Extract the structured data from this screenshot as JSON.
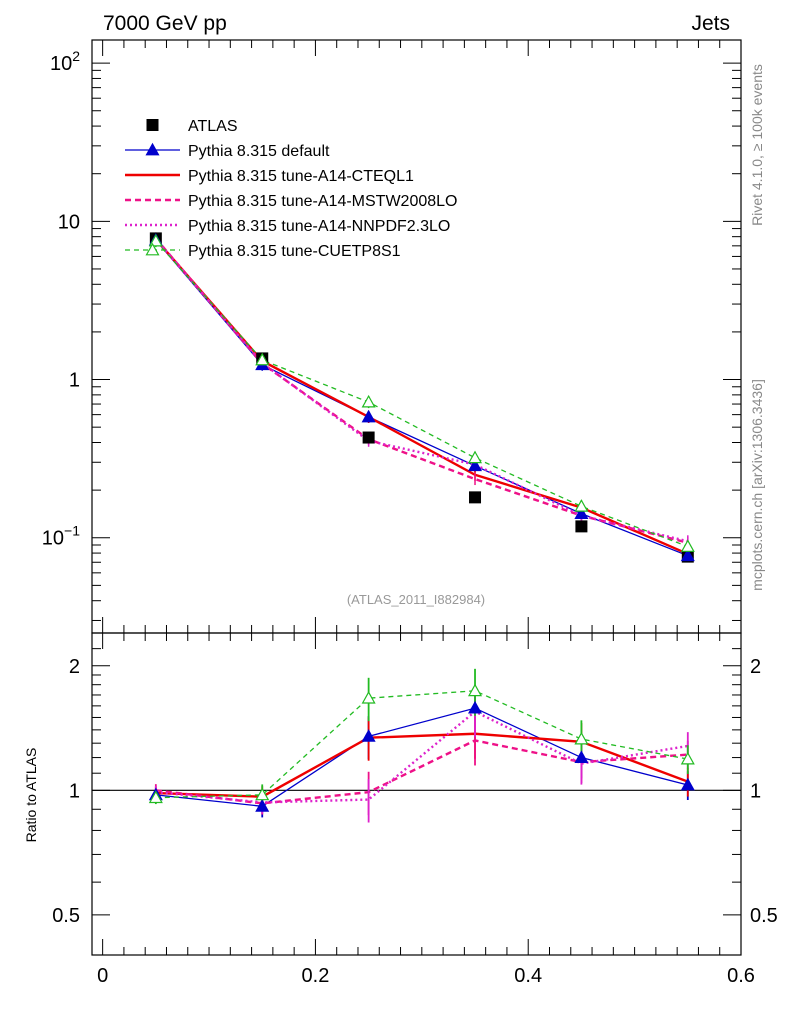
{
  "header": {
    "left": "7000 GeV pp",
    "right": "Jets"
  },
  "side": {
    "rivet": "Rivet 4.1.0, ≥ 100k events",
    "mcplots": "mcplots.cern.ch [arXiv:1306.3436]"
  },
  "colors": {
    "atlas": "#000000",
    "default": "#0000cc",
    "cteql1": "#ee0000",
    "mstw": "#ee1188",
    "nnpdf": "#dd22cc",
    "cuetp": "#22bb22",
    "ref_label": "#999999",
    "side_text": "#888888"
  },
  "chart_data": {
    "type": "line",
    "title": "",
    "reference": "(ATLAS_2011_I882984)",
    "x": [
      0.05,
      0.15,
      0.25,
      0.35,
      0.45,
      0.55
    ],
    "xlim": [
      -0.01,
      0.6
    ],
    "x_ticks": [
      "0",
      "0.2",
      "0.4",
      "0.6"
    ],
    "ylim_main": [
      0.025,
      140
    ],
    "y_ticks_main": [
      "10−1",
      "1",
      "10",
      "102"
    ],
    "ylim_ratio": [
      0.4,
      2.4
    ],
    "y_ticks_ratio": [
      "0.5",
      "1",
      "2"
    ],
    "ylabel_ratio": "Ratio to ATLAS",
    "atlas": {
      "name": "ATLAS",
      "values": [
        7.8,
        1.36,
        0.43,
        0.18,
        0.118,
        0.076
      ]
    },
    "series": [
      {
        "name": "Pythia 8.315 default",
        "key": "default",
        "values": [
          7.6,
          1.24,
          0.58,
          0.285,
          0.142,
          0.077
        ],
        "ratio": [
          0.975,
          0.915,
          1.35,
          1.58,
          1.2,
          1.03
        ]
      },
      {
        "name": "Pythia 8.315 tune-A14-CTEQL1",
        "key": "cteql1",
        "values": [
          7.7,
          1.31,
          0.58,
          0.25,
          0.155,
          0.079
        ],
        "ratio": [
          0.985,
          0.965,
          1.34,
          1.37,
          1.31,
          1.05
        ]
      },
      {
        "name": "Pythia 8.315 tune-A14-MSTW2008LO",
        "key": "mstw",
        "values": [
          7.8,
          1.26,
          0.42,
          0.235,
          0.138,
          0.093
        ],
        "ratio": [
          1.0,
          0.93,
          0.99,
          1.32,
          1.17,
          1.22
        ]
      },
      {
        "name": "Pythia 8.315 tune-A14-NNPDF2.3LO",
        "key": "nnpdf",
        "values": [
          7.7,
          1.27,
          0.41,
          0.29,
          0.138,
          0.095
        ],
        "ratio": [
          0.99,
          0.935,
          0.95,
          1.55,
          1.16,
          1.28
        ]
      },
      {
        "name": "Pythia 8.315 tune-CUETP8S1",
        "key": "cuetp",
        "values": [
          7.5,
          1.33,
          0.72,
          0.32,
          0.158,
          0.088
        ],
        "ratio": [
          0.96,
          0.975,
          1.67,
          1.74,
          1.33,
          1.19
        ]
      }
    ]
  }
}
